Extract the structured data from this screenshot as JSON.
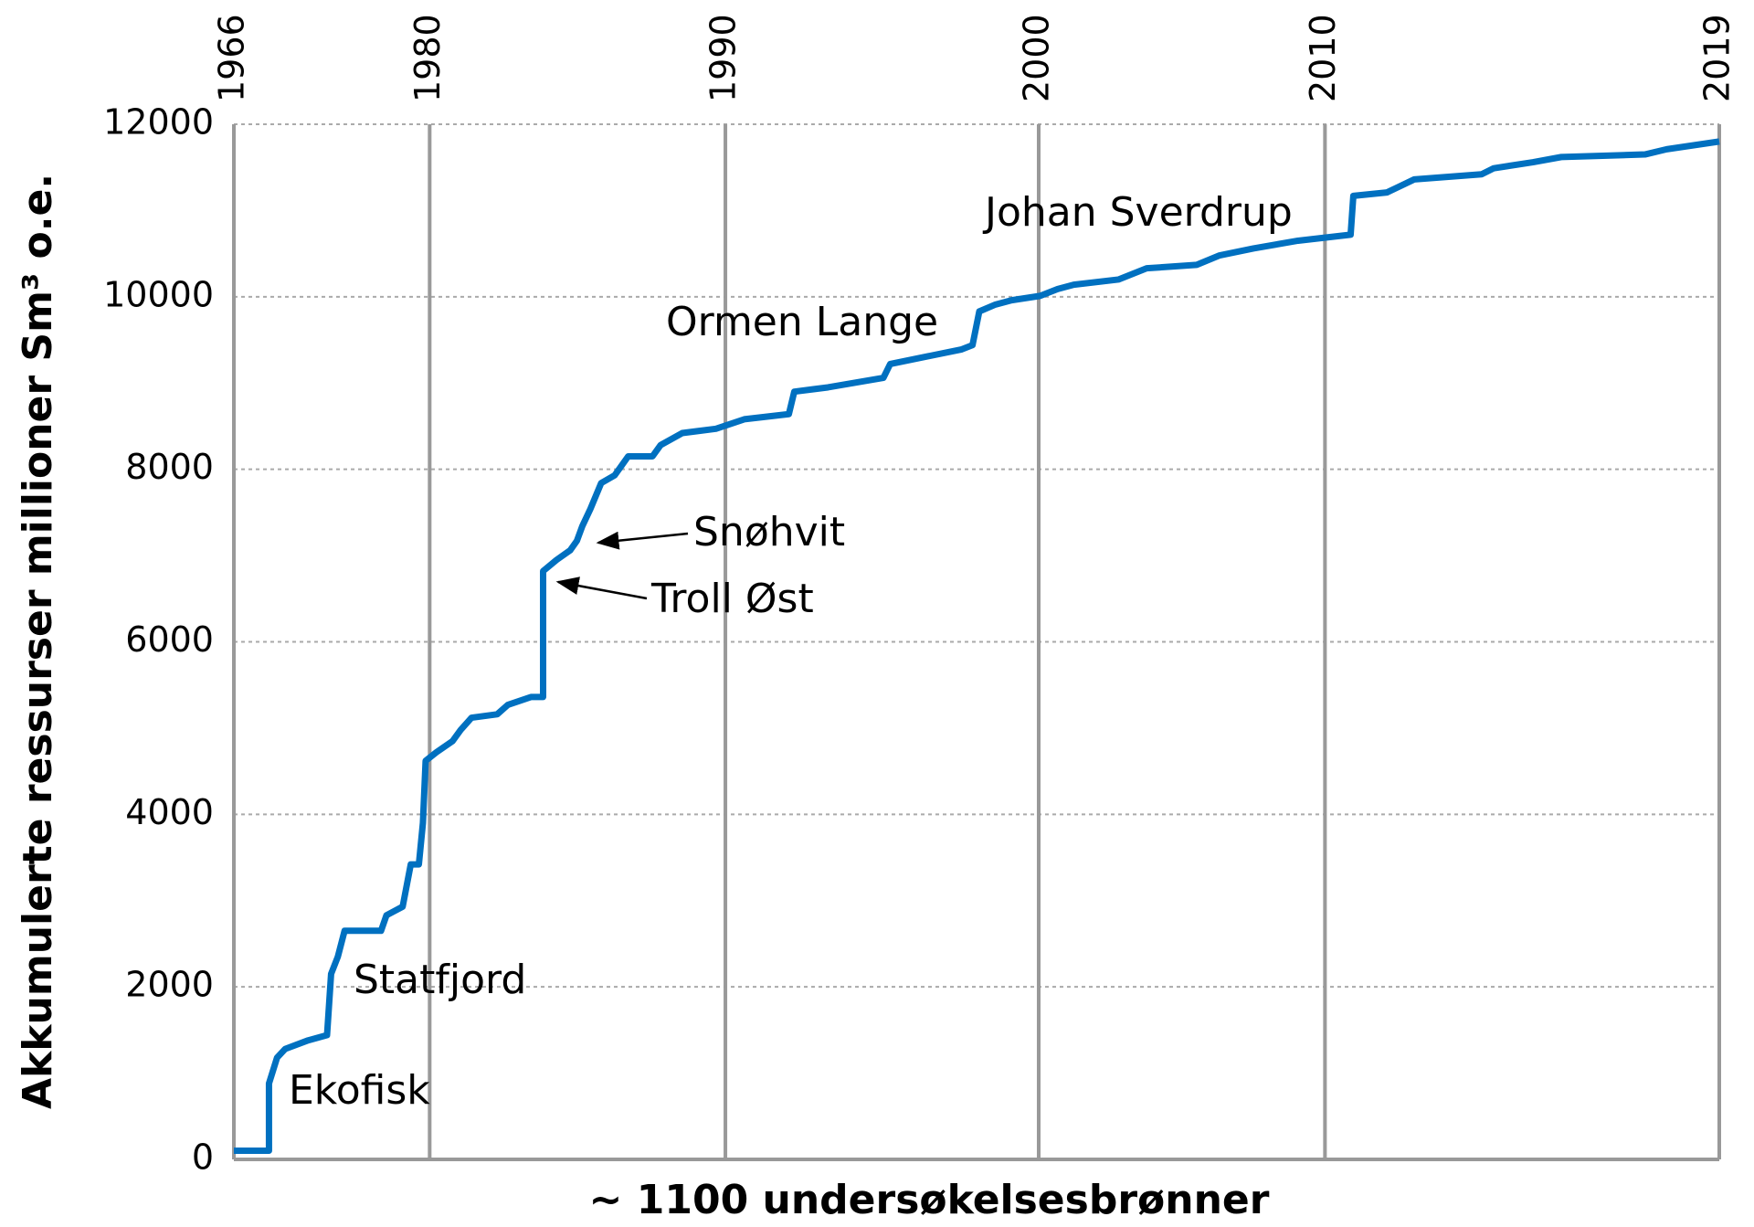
{
  "chart_data": {
    "type": "line",
    "ylabel": "Akkumulerte ressurser millioner Sm³ o.e.",
    "xlabel": "~ 1100 undersøkelsesbrønner",
    "color": "#0070c0",
    "xlim": [
      0,
      1100
    ],
    "xticks": [
      {
        "value": 0,
        "label": "1966"
      },
      {
        "value": 145,
        "label": "1980"
      },
      {
        "value": 364,
        "label": "1990"
      },
      {
        "value": 596,
        "label": "2000"
      },
      {
        "value": 808,
        "label": "2010"
      },
      {
        "value": 1100,
        "label": "2019"
      }
    ],
    "ylim": [
      0,
      12000
    ],
    "yticks": [
      0,
      2000,
      4000,
      6000,
      8000,
      10000,
      12000
    ],
    "grid": true,
    "x": [
      0,
      26,
      26,
      32,
      38,
      55,
      69,
      72,
      77,
      82,
      109,
      113,
      125,
      131,
      137,
      140,
      142,
      150,
      162,
      168,
      176,
      195,
      203,
      220,
      229,
      229,
      239,
      249,
      254,
      258,
      264,
      272,
      282,
      292,
      310,
      316,
      332,
      357,
      378,
      411,
      415,
      440,
      481,
      486,
      514,
      539,
      547,
      552,
      564,
      576,
      597,
      610,
      622,
      655,
      676,
      713,
      730,
      755,
      788,
      827,
      829,
      854,
      874,
      924,
      933,
      962,
      983,
      1045,
      1061,
      1100
    ],
    "values": [
      100,
      100,
      880,
      1180,
      1280,
      1380,
      1440,
      2150,
      2350,
      2650,
      2650,
      2830,
      2930,
      3420,
      3420,
      3900,
      4620,
      4720,
      4850,
      4980,
      5120,
      5160,
      5270,
      5360,
      5360,
      6820,
      6950,
      7060,
      7170,
      7340,
      7540,
      7840,
      7930,
      8150,
      8150,
      8280,
      8420,
      8470,
      8580,
      8640,
      8900,
      8950,
      9060,
      9220,
      9310,
      9390,
      9440,
      9830,
      9910,
      9960,
      10010,
      10090,
      10140,
      10200,
      10330,
      10370,
      10480,
      10560,
      10650,
      10720,
      11170,
      11210,
      11360,
      11420,
      11490,
      11560,
      11620,
      11650,
      11710,
      11800
    ],
    "annotations": [
      "Ekofisk",
      "Statfjord",
      "Troll Øst",
      "Snøhvit",
      "Ormen Lange",
      "Johan Sverdrup"
    ]
  }
}
